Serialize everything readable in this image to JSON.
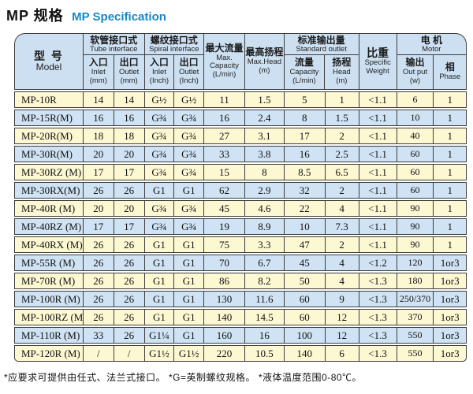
{
  "title": {
    "zh": "MP 规格",
    "en": "MP Specification"
  },
  "table": {
    "header": {
      "model_zh": "型 号",
      "model_en": "Model",
      "tube_zh": "软管接口式",
      "tube_en": "Tube interface",
      "spiral_zh": "螺纹接口式",
      "spiral_en": "Spiral interface",
      "inlet_zh": "入口",
      "inlet_en": "Inlet",
      "outlet_zh": "出口",
      "outlet_en": "Outlet",
      "unit_mm": "(mm)",
      "unit_inch": "(Inch)",
      "maxcap_zh": "最大流量",
      "maxcap_en1": "Max.",
      "maxcap_en2": "Capacity",
      "maxcap_unit": "(L/min)",
      "maxhead_zh": "最高扬程",
      "maxhead_en": "Max.Head",
      "maxhead_unit": "(m)",
      "std_zh": "标准输出量",
      "std_en": "Standard outlet",
      "std_cap_zh": "流量",
      "std_cap_en": "Capacity",
      "std_cap_unit": "(L/min)",
      "std_head_zh": "扬程",
      "std_head_en": "Head",
      "std_head_unit": "(m)",
      "weight_zh": "比重",
      "weight_en1": "Specific",
      "weight_en2": "Weight",
      "motor_zh": "电  机",
      "motor_en": "Motor",
      "out_zh": "输出",
      "out_en": "Out put",
      "out_unit": "(w)",
      "phase_zh": "相",
      "phase_en": "Phase"
    },
    "rows": [
      [
        "MP-10R",
        "14",
        "14",
        "G½",
        "G½",
        "11",
        "1.5",
        "5",
        "1",
        "<1.1",
        "6",
        "1"
      ],
      [
        "MP-15R(M)",
        "16",
        "16",
        "G¾",
        "G¾",
        "16",
        "2.4",
        "8",
        "1.5",
        "<1.1",
        "10",
        "1"
      ],
      [
        "MP-20R(M)",
        "18",
        "18",
        "G¾",
        "G¾",
        "27",
        "3.1",
        "17",
        "2",
        "<1.1",
        "40",
        "1"
      ],
      [
        "MP-30R(M)",
        "20",
        "20",
        "G¾",
        "G¾",
        "33",
        "3.8",
        "16",
        "2.5",
        "<1.1",
        "60",
        "1"
      ],
      [
        "MP-30RZ (M)",
        "17",
        "17",
        "G¾",
        "G¾",
        "15",
        "8",
        "8.5",
        "6.5",
        "<1.1",
        "60",
        "1"
      ],
      [
        "MP-30RX(M)",
        "26",
        "26",
        "G1",
        "G1",
        "62",
        "2.9",
        "32",
        "2",
        "<1.1",
        "60",
        "1"
      ],
      [
        "MP-40R (M)",
        "20",
        "20",
        "G¾",
        "G¾",
        "45",
        "4.6",
        "22",
        "4",
        "<1.1",
        "90",
        "1"
      ],
      [
        "MP-40RZ (M)",
        "17",
        "17",
        "G¾",
        "G¾",
        "19",
        "8.9",
        "10",
        "7.3",
        "<1.1",
        "90",
        "1"
      ],
      [
        "MP-40RX (M)",
        "26",
        "26",
        "G1",
        "G1",
        "75",
        "3.3",
        "47",
        "2",
        "<1.1",
        "90",
        "1"
      ],
      [
        "MP-55R (M)",
        "26",
        "26",
        "G1",
        "G1",
        "70",
        "6.7",
        "45",
        "4",
        "<1.2",
        "120",
        "1or3"
      ],
      [
        "MP-70R (M)",
        "26",
        "26",
        "G1",
        "G1",
        "86",
        "8.2",
        "50",
        "4",
        "<1.3",
        "180",
        "1or3"
      ],
      [
        "MP-100R (M)",
        "26",
        "26",
        "G1",
        "G1",
        "130",
        "11.6",
        "60",
        "9",
        "<1.3",
        "250/370",
        "1or3"
      ],
      [
        "MP-100RZ (M)",
        "26",
        "26",
        "G1",
        "G1",
        "140",
        "14.5",
        "60",
        "12",
        "<1.3",
        "370",
        "1or3"
      ],
      [
        "MP-110R (M)",
        "33",
        "26",
        "G1¼",
        "G1",
        "160",
        "16",
        "100",
        "12",
        "<1.3",
        "550",
        "1or3"
      ],
      [
        "MP-120R (M)",
        "/",
        "/",
        "G1½",
        "G1½",
        "220",
        "10.5",
        "140",
        "6",
        "<1.3",
        "550",
        "1or3"
      ]
    ]
  },
  "footnote": "*应要求可提供由任式、法兰式接口。  *G=英制螺纹规格。  *液体温度范围0-80℃。",
  "colors": {
    "accent_blue": "#1488c6",
    "header_bg": "#cde0f2",
    "row_yellow": "#fcf8d2",
    "row_blue": "#cfe3f4",
    "border": "#3c3c3c"
  }
}
